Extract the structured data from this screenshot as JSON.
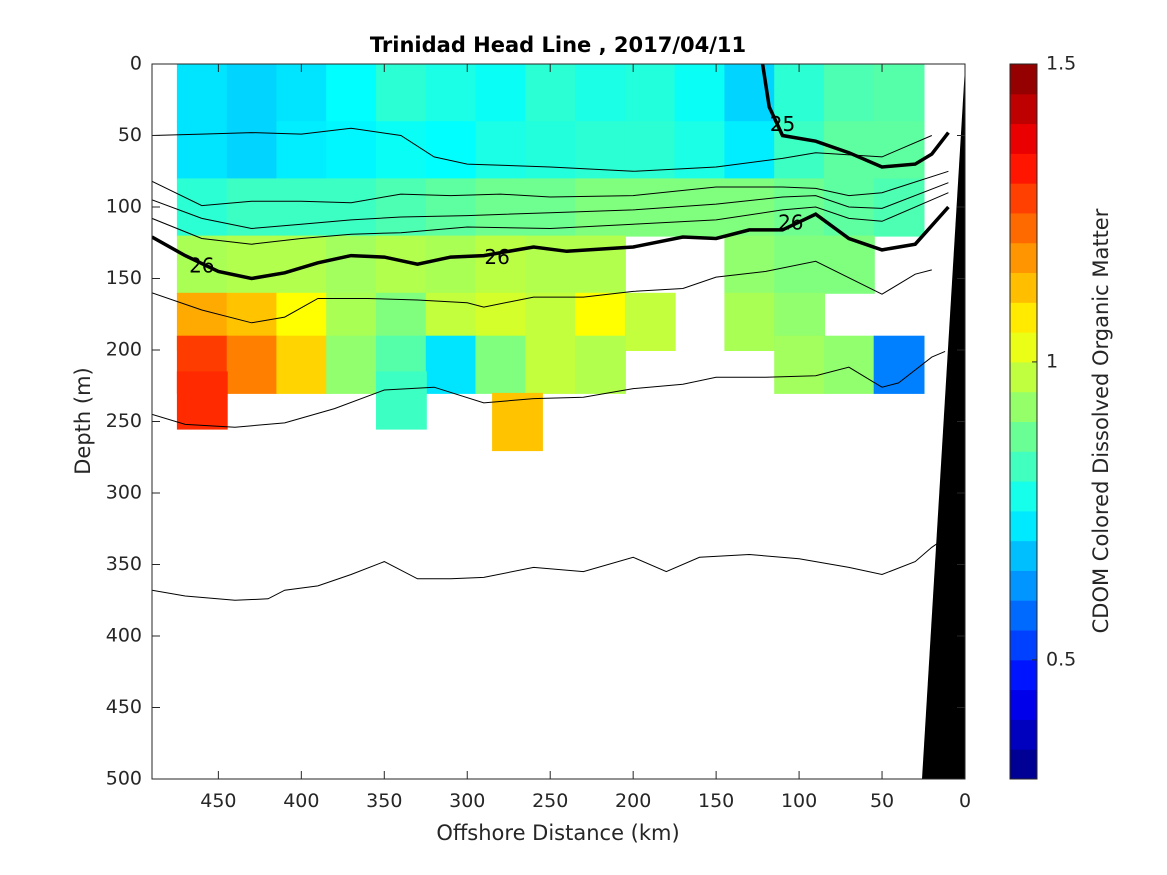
{
  "chart_data": {
    "type": "heatmap",
    "title": "Trinidad Head Line , 2017/04/11",
    "xlabel": "Offshore Distance (km)",
    "ylabel": "Depth (m)",
    "colorbar_label": "CDOM Colored Dissolved Organic Matter",
    "xlim": [
      490,
      0
    ],
    "ylim": [
      0,
      500
    ],
    "y_reversed": true,
    "x_reversed": true,
    "x_ticks": [
      450,
      400,
      350,
      300,
      250,
      200,
      150,
      100,
      50,
      0
    ],
    "y_ticks": [
      0,
      50,
      100,
      150,
      200,
      250,
      300,
      350,
      400,
      450,
      500
    ],
    "clim": [
      0.3,
      1.5
    ],
    "colorbar_ticks": [
      0.5,
      1,
      1.5
    ],
    "colormap": "jet",
    "contour_labels": [
      {
        "text": "25",
        "x": 110,
        "y": 43
      },
      {
        "text": "26",
        "x": 460,
        "y": 142
      },
      {
        "text": "26",
        "x": 282,
        "y": 136
      },
      {
        "text": "26",
        "x": 105,
        "y": 112
      }
    ],
    "isopycnals": [
      {
        "bold": false,
        "points": [
          [
            490,
            50
          ],
          [
            460,
            49
          ],
          [
            430,
            48
          ],
          [
            400,
            49
          ],
          [
            370,
            45
          ],
          [
            340,
            50
          ],
          [
            320,
            65
          ],
          [
            300,
            70
          ],
          [
            250,
            72
          ],
          [
            200,
            75
          ],
          [
            150,
            72
          ],
          [
            110,
            66
          ],
          [
            90,
            62
          ],
          [
            50,
            65
          ],
          [
            20,
            50
          ]
        ]
      },
      {
        "bold": true,
        "points": [
          [
            122,
            0
          ],
          [
            118,
            30
          ],
          [
            110,
            50
          ],
          [
            90,
            54
          ],
          [
            70,
            62
          ],
          [
            50,
            72
          ],
          [
            30,
            70
          ],
          [
            20,
            63
          ],
          [
            10,
            48
          ]
        ]
      },
      {
        "bold": false,
        "points": [
          [
            490,
            82
          ],
          [
            460,
            99
          ],
          [
            430,
            96
          ],
          [
            400,
            96
          ],
          [
            370,
            97
          ],
          [
            340,
            91
          ],
          [
            310,
            92
          ],
          [
            280,
            91
          ],
          [
            250,
            93
          ],
          [
            200,
            92
          ],
          [
            150,
            86
          ],
          [
            110,
            86
          ],
          [
            90,
            87
          ],
          [
            70,
            92
          ],
          [
            50,
            90
          ],
          [
            10,
            75
          ]
        ]
      },
      {
        "bold": false,
        "points": [
          [
            490,
            95
          ],
          [
            460,
            108
          ],
          [
            430,
            115
          ],
          [
            400,
            112
          ],
          [
            370,
            109
          ],
          [
            340,
            107
          ],
          [
            300,
            106
          ],
          [
            250,
            104
          ],
          [
            200,
            102
          ],
          [
            150,
            98
          ],
          [
            110,
            93
          ],
          [
            90,
            92
          ],
          [
            70,
            100
          ],
          [
            50,
            101
          ],
          [
            10,
            83
          ]
        ]
      },
      {
        "bold": false,
        "points": [
          [
            490,
            108
          ],
          [
            460,
            122
          ],
          [
            430,
            126
          ],
          [
            400,
            122
          ],
          [
            370,
            119
          ],
          [
            340,
            118
          ],
          [
            300,
            114
          ],
          [
            250,
            115
          ],
          [
            200,
            112
          ],
          [
            150,
            109
          ],
          [
            110,
            102
          ],
          [
            90,
            100
          ],
          [
            70,
            108
          ],
          [
            50,
            110
          ],
          [
            10,
            90
          ]
        ]
      },
      {
        "bold": true,
        "points": [
          [
            490,
            121
          ],
          [
            470,
            134
          ],
          [
            450,
            145
          ],
          [
            430,
            150
          ],
          [
            410,
            146
          ],
          [
            390,
            139
          ],
          [
            370,
            134
          ],
          [
            350,
            135
          ],
          [
            330,
            140
          ],
          [
            310,
            135
          ],
          [
            290,
            134
          ],
          [
            260,
            128
          ],
          [
            240,
            131
          ],
          [
            200,
            128
          ],
          [
            170,
            121
          ],
          [
            150,
            122
          ],
          [
            130,
            116
          ],
          [
            110,
            116
          ],
          [
            90,
            105
          ],
          [
            70,
            122
          ],
          [
            50,
            130
          ],
          [
            30,
            126
          ],
          [
            10,
            100
          ]
        ]
      },
      {
        "bold": false,
        "points": [
          [
            490,
            160
          ],
          [
            460,
            172
          ],
          [
            430,
            181
          ],
          [
            410,
            177
          ],
          [
            390,
            164
          ],
          [
            360,
            164
          ],
          [
            330,
            165
          ],
          [
            300,
            167
          ],
          [
            290,
            170
          ],
          [
            260,
            163
          ],
          [
            230,
            163
          ],
          [
            200,
            159
          ],
          [
            170,
            157
          ],
          [
            150,
            149
          ],
          [
            120,
            145
          ],
          [
            90,
            138
          ],
          [
            50,
            161
          ],
          [
            30,
            147
          ],
          [
            20,
            144
          ]
        ]
      },
      {
        "bold": false,
        "points": [
          [
            490,
            245
          ],
          [
            470,
            252
          ],
          [
            440,
            254
          ],
          [
            410,
            251
          ],
          [
            380,
            241
          ],
          [
            350,
            228
          ],
          [
            320,
            226
          ],
          [
            290,
            237
          ],
          [
            260,
            234
          ],
          [
            230,
            233
          ],
          [
            200,
            227
          ],
          [
            170,
            224
          ],
          [
            150,
            219
          ],
          [
            120,
            219
          ],
          [
            90,
            218
          ],
          [
            70,
            212
          ],
          [
            50,
            226
          ],
          [
            40,
            223
          ],
          [
            20,
            205
          ],
          [
            12,
            201
          ]
        ]
      },
      {
        "bold": false,
        "points": [
          [
            490,
            368
          ],
          [
            470,
            372
          ],
          [
            440,
            375
          ],
          [
            420,
            374
          ],
          [
            410,
            368
          ],
          [
            390,
            365
          ],
          [
            370,
            357
          ],
          [
            350,
            348
          ],
          [
            330,
            360
          ],
          [
            310,
            360
          ],
          [
            290,
            359
          ],
          [
            260,
            352
          ],
          [
            230,
            355
          ],
          [
            200,
            345
          ],
          [
            180,
            355
          ],
          [
            160,
            345
          ],
          [
            130,
            343
          ],
          [
            100,
            346
          ],
          [
            70,
            352
          ],
          [
            50,
            357
          ],
          [
            30,
            348
          ],
          [
            20,
            338
          ],
          [
            10,
            330
          ]
        ]
      }
    ],
    "cells_unit": "CDOM",
    "cells": [
      {
        "x": 460,
        "y": 20,
        "v": 0.72
      },
      {
        "x": 430,
        "y": 20,
        "v": 0.7
      },
      {
        "x": 400,
        "y": 20,
        "v": 0.72
      },
      {
        "x": 370,
        "y": 20,
        "v": 0.75
      },
      {
        "x": 340,
        "y": 20,
        "v": 0.8
      },
      {
        "x": 310,
        "y": 20,
        "v": 0.78
      },
      {
        "x": 280,
        "y": 20,
        "v": 0.76
      },
      {
        "x": 250,
        "y": 20,
        "v": 0.8
      },
      {
        "x": 220,
        "y": 20,
        "v": 0.78
      },
      {
        "x": 190,
        "y": 20,
        "v": 0.79
      },
      {
        "x": 160,
        "y": 20,
        "v": 0.76
      },
      {
        "x": 130,
        "y": 20,
        "v": 0.7
      },
      {
        "x": 100,
        "y": 20,
        "v": 0.8
      },
      {
        "x": 70,
        "y": 20,
        "v": 0.84
      },
      {
        "x": 40,
        "y": 20,
        "v": 0.85
      },
      {
        "x": 460,
        "y": 60,
        "v": 0.72
      },
      {
        "x": 430,
        "y": 60,
        "v": 0.7
      },
      {
        "x": 400,
        "y": 60,
        "v": 0.73
      },
      {
        "x": 370,
        "y": 60,
        "v": 0.74
      },
      {
        "x": 340,
        "y": 60,
        "v": 0.76
      },
      {
        "x": 310,
        "y": 60,
        "v": 0.75
      },
      {
        "x": 280,
        "y": 60,
        "v": 0.78
      },
      {
        "x": 250,
        "y": 60,
        "v": 0.79
      },
      {
        "x": 220,
        "y": 60,
        "v": 0.8
      },
      {
        "x": 190,
        "y": 60,
        "v": 0.8
      },
      {
        "x": 160,
        "y": 60,
        "v": 0.78
      },
      {
        "x": 130,
        "y": 60,
        "v": 0.73
      },
      {
        "x": 100,
        "y": 60,
        "v": 0.82
      },
      {
        "x": 70,
        "y": 60,
        "v": 0.86
      },
      {
        "x": 40,
        "y": 60,
        "v": 0.86
      },
      {
        "x": 460,
        "y": 100,
        "v": 0.8
      },
      {
        "x": 430,
        "y": 100,
        "v": 0.82
      },
      {
        "x": 400,
        "y": 100,
        "v": 0.82
      },
      {
        "x": 370,
        "y": 100,
        "v": 0.82
      },
      {
        "x": 340,
        "y": 100,
        "v": 0.84
      },
      {
        "x": 310,
        "y": 100,
        "v": 0.86
      },
      {
        "x": 280,
        "y": 100,
        "v": 0.88
      },
      {
        "x": 250,
        "y": 100,
        "v": 0.88
      },
      {
        "x": 220,
        "y": 100,
        "v": 0.9
      },
      {
        "x": 190,
        "y": 100,
        "v": 0.9
      },
      {
        "x": 160,
        "y": 100,
        "v": 0.9
      },
      {
        "x": 130,
        "y": 100,
        "v": 0.9
      },
      {
        "x": 100,
        "y": 100,
        "v": 0.88
      },
      {
        "x": 70,
        "y": 100,
        "v": 0.86
      },
      {
        "x": 40,
        "y": 100,
        "v": 0.84
      },
      {
        "x": 460,
        "y": 140,
        "v": 0.95
      },
      {
        "x": 430,
        "y": 140,
        "v": 0.96
      },
      {
        "x": 400,
        "y": 140,
        "v": 0.96
      },
      {
        "x": 370,
        "y": 140,
        "v": 0.94
      },
      {
        "x": 340,
        "y": 140,
        "v": 0.96
      },
      {
        "x": 310,
        "y": 140,
        "v": 0.95
      },
      {
        "x": 280,
        "y": 140,
        "v": 0.97
      },
      {
        "x": 250,
        "y": 140,
        "v": 0.96
      },
      {
        "x": 220,
        "y": 140,
        "v": 0.96
      },
      {
        "x": 130,
        "y": 140,
        "v": 0.92
      },
      {
        "x": 100,
        "y": 140,
        "v": 0.9
      },
      {
        "x": 70,
        "y": 140,
        "v": 0.9
      },
      {
        "x": 460,
        "y": 180,
        "v": 1.15
      },
      {
        "x": 430,
        "y": 180,
        "v": 1.12
      },
      {
        "x": 400,
        "y": 180,
        "v": 1.05
      },
      {
        "x": 370,
        "y": 180,
        "v": 0.95
      },
      {
        "x": 340,
        "y": 180,
        "v": 0.9
      },
      {
        "x": 310,
        "y": 180,
        "v": 0.98
      },
      {
        "x": 280,
        "y": 180,
        "v": 1.0
      },
      {
        "x": 250,
        "y": 180,
        "v": 0.98
      },
      {
        "x": 220,
        "y": 180,
        "v": 1.05
      },
      {
        "x": 190,
        "y": 180,
        "v": 0.98
      },
      {
        "x": 130,
        "y": 180,
        "v": 0.95
      },
      {
        "x": 100,
        "y": 180,
        "v": 0.92
      },
      {
        "x": 460,
        "y": 210,
        "v": 1.28
      },
      {
        "x": 430,
        "y": 210,
        "v": 1.2
      },
      {
        "x": 400,
        "y": 210,
        "v": 1.1
      },
      {
        "x": 370,
        "y": 210,
        "v": 0.92
      },
      {
        "x": 340,
        "y": 210,
        "v": 0.85
      },
      {
        "x": 310,
        "y": 210,
        "v": 0.72
      },
      {
        "x": 280,
        "y": 210,
        "v": 0.9
      },
      {
        "x": 250,
        "y": 210,
        "v": 0.98
      },
      {
        "x": 220,
        "y": 210,
        "v": 0.96
      },
      {
        "x": 100,
        "y": 210,
        "v": 0.94
      },
      {
        "x": 70,
        "y": 210,
        "v": 0.92
      },
      {
        "x": 40,
        "y": 210,
        "v": 0.6
      },
      {
        "x": 460,
        "y": 235,
        "v": 1.3
      },
      {
        "x": 340,
        "y": 235,
        "v": 0.82
      },
      {
        "x": 270,
        "y": 250,
        "v": 1.12
      }
    ]
  }
}
